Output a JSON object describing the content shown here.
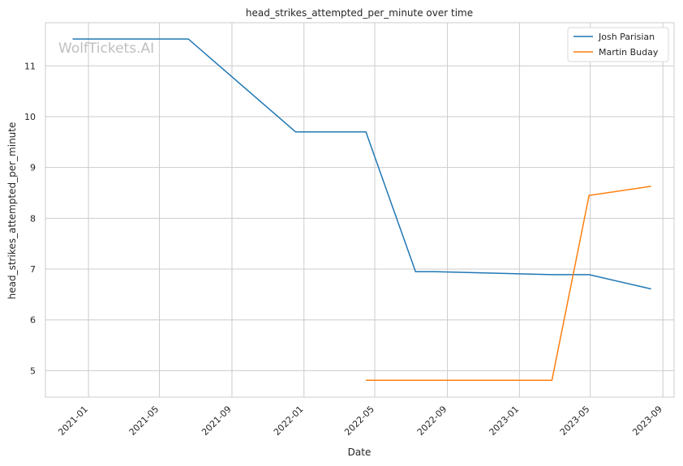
{
  "chart_data": {
    "type": "line",
    "title": "head_strikes_attempted_per_minute over time",
    "xlabel": "Date",
    "ylabel": "head_strikes_attempted_per_minute",
    "watermark": "WolfTickets.AI",
    "xlim": [
      "2020-10-20",
      "2023-09-20"
    ],
    "ylim": [
      4.48,
      11.85
    ],
    "x_ticks": [
      "2021-01",
      "2021-05",
      "2021-09",
      "2022-01",
      "2022-05",
      "2022-09",
      "2023-01",
      "2023-05",
      "2023-09"
    ],
    "y_ticks": [
      5,
      6,
      7,
      8,
      9,
      10,
      11
    ],
    "grid": true,
    "legend_position": "top-right",
    "series": [
      {
        "name": "Josh Parisian",
        "color": "#1f77b4",
        "points": [
          {
            "x": "2020-12-05",
            "y": 11.53
          },
          {
            "x": "2021-06-19",
            "y": 11.53
          },
          {
            "x": "2021-12-18",
            "y": 9.7
          },
          {
            "x": "2022-04-16",
            "y": 9.7
          },
          {
            "x": "2022-07-09",
            "y": 6.95
          },
          {
            "x": "2022-08-13",
            "y": 6.95
          },
          {
            "x": "2023-02-25",
            "y": 6.89
          },
          {
            "x": "2023-04-29",
            "y": 6.89
          },
          {
            "x": "2023-08-12",
            "y": 6.61
          }
        ]
      },
      {
        "name": "Martin Buday",
        "color": "#ff7f0e",
        "points": [
          {
            "x": "2022-04-16",
            "y": 4.81
          },
          {
            "x": "2023-02-25",
            "y": 4.81
          },
          {
            "x": "2023-04-29",
            "y": 8.45
          },
          {
            "x": "2023-08-12",
            "y": 8.63
          }
        ]
      }
    ]
  }
}
